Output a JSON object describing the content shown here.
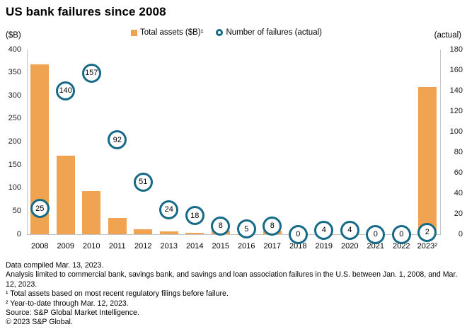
{
  "title": "US bank failures since 2008",
  "axis_left_unit": "($B)",
  "axis_right_unit": "(actual)",
  "legend": {
    "assets_label": "Total assets ($B)¹",
    "failures_label": "Number of failures (actual)"
  },
  "colors": {
    "bar": "#F0A351",
    "marker_ring": "#156A88",
    "axis_line": "#C4C4C4"
  },
  "chart_data": {
    "type": "bar",
    "title": "US bank failures since 2008",
    "categories": [
      "2008",
      "2009",
      "2010",
      "2011",
      "2012",
      "2013",
      "2014",
      "2015",
      "2016",
      "2017",
      "2018",
      "2019",
      "2020",
      "2021",
      "2022",
      "2023²"
    ],
    "series": [
      {
        "name": "Total assets ($B)¹",
        "type": "bar",
        "axis": "left",
        "values": [
          368,
          170,
          93,
          35,
          11,
          6,
          3,
          7,
          0.3,
          7,
          0,
          0.2,
          0.5,
          0,
          0,
          319
        ]
      },
      {
        "name": "Number of failures (actual)",
        "type": "circle-marker",
        "axis": "right",
        "values": [
          25,
          140,
          157,
          92,
          51,
          24,
          18,
          8,
          5,
          8,
          0,
          4,
          4,
          0,
          0,
          2
        ]
      }
    ],
    "left_axis": {
      "label": "($B)",
      "range": [
        0,
        400
      ],
      "ticks": [
        400,
        350,
        300,
        250,
        200,
        150,
        100,
        50,
        0
      ]
    },
    "right_axis": {
      "label": "(actual)",
      "range": [
        0,
        180
      ],
      "ticks": [
        180,
        160,
        140,
        120,
        100,
        80,
        60,
        40,
        20,
        0
      ]
    },
    "grid": false,
    "legend_position": "top-center"
  },
  "footnotes": [
    "Data compiled Mar. 13, 2023.",
    "Analysis limited to commercial bank, savings bank, and savings and loan association failures in the U.S. between Jan. 1, 2008, and Mar. 12, 2023.",
    "¹ Total assets based on most recent regulatory filings before failure.",
    "² Year-to-date through Mar. 12, 2023.",
    "Source: S&P Global Market Intelligence.",
    "© 2023 S&P Global."
  ]
}
